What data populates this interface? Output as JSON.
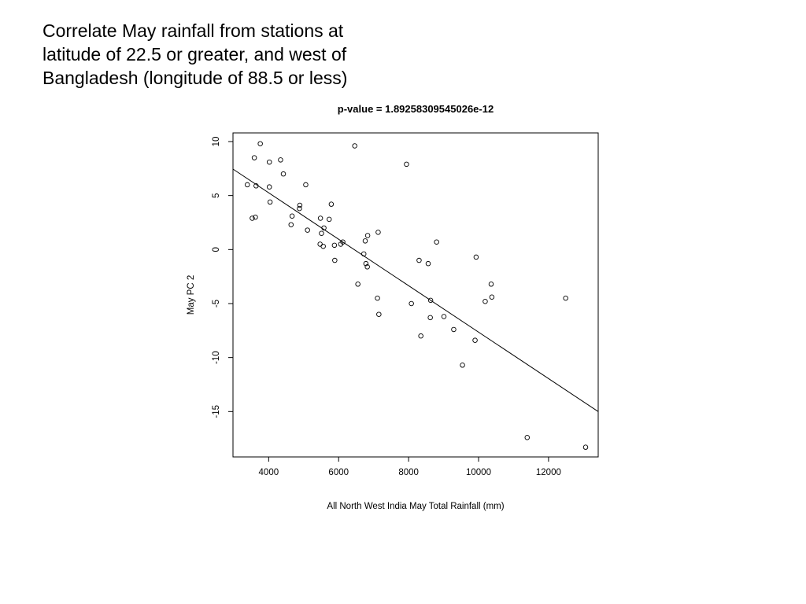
{
  "slide": {
    "title_lines": [
      "Correlate May rainfall from stations at",
      "latitude of 22.5 or greater, and west of",
      "Bangladesh (longitude of 88.5 or less)"
    ]
  },
  "chart_data": {
    "type": "scatter",
    "title": "p-value =  1.89258309545026e-12",
    "xlabel": "All North West India May Total Rainfall (mm)",
    "ylabel": "May PC 2",
    "xlim": [
      2980,
      13420
    ],
    "ylim": [
      -19.2,
      10.8
    ],
    "xticks": [
      4000,
      6000,
      8000,
      10000,
      12000
    ],
    "xtick_labels": [
      "4000",
      "6000",
      "8000",
      "10000",
      "12000"
    ],
    "yticks": [
      10,
      5,
      0,
      -5,
      -10,
      -15
    ],
    "ytick_labels": [
      "10",
      "5",
      "0",
      "-5",
      "-10",
      "-15"
    ],
    "grid": false,
    "legend": "none",
    "fit_line": {
      "x": [
        2980,
        13420
      ],
      "y": [
        7.45,
        -15.0
      ]
    },
    "points": {
      "x": [
        3760,
        3590,
        4020,
        4340,
        4420,
        3390,
        3640,
        4020,
        5060,
        4040,
        4890,
        4880,
        3530,
        3620,
        4670,
        4640,
        5110,
        5480,
        5580,
        5730,
        5790,
        5510,
        5470,
        5560,
        5880,
        6060,
        6120,
        5890,
        6460,
        6720,
        6830,
        6760,
        7130,
        6780,
        6820,
        6550,
        7150,
        7940,
        8800,
        8300,
        8560,
        8080,
        8630,
        8620,
        7110,
        9010,
        8350,
        9290,
        9930,
        9540,
        10360,
        10190,
        10380,
        9900,
        12490,
        11390,
        13060
      ],
      "y": [
        9.8,
        8.5,
        8.1,
        8.3,
        7.0,
        6.0,
        5.9,
        5.8,
        6.0,
        4.4,
        4.1,
        3.8,
        2.9,
        3.0,
        3.1,
        2.3,
        1.8,
        2.9,
        2.0,
        2.8,
        4.2,
        1.5,
        0.5,
        0.3,
        0.4,
        0.5,
        0.7,
        -1.0,
        9.6,
        -0.4,
        1.3,
        0.8,
        1.6,
        -1.3,
        -1.6,
        -3.2,
        -6.0,
        7.9,
        0.7,
        -1.0,
        -1.3,
        -5.0,
        -4.7,
        -6.3,
        -4.5,
        -6.2,
        -8.0,
        -7.4,
        -0.7,
        -10.7,
        -3.2,
        -4.8,
        -4.4,
        -8.4,
        -4.5,
        -17.4,
        -18.3
      ]
    }
  }
}
